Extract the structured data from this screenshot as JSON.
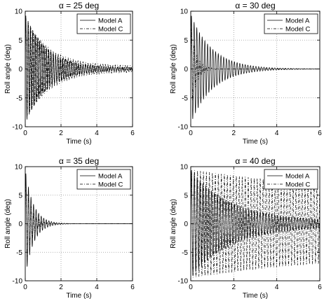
{
  "chart_data": [
    {
      "type": "line",
      "title": "α = 25 deg",
      "xlabel": "Time (s)",
      "ylabel": "Roll angle (deg)",
      "xlim": [
        0,
        6
      ],
      "ylim": [
        -10,
        10
      ],
      "xticks": [
        "0",
        "2",
        "4",
        "6"
      ],
      "yticks": [
        "-10",
        "-5",
        "0",
        "5",
        "10"
      ],
      "grid": true,
      "legend_position": "top-right",
      "series": [
        {
          "name": "Model A",
          "style": "solid",
          "amp0": 9.5,
          "freq": 7.8,
          "decay": 0.85,
          "floor": 0.2
        },
        {
          "name": "Model C",
          "style": "dashdot",
          "amp0": 9.0,
          "freq": 7.2,
          "decay": 0.75,
          "floor": 0.5
        }
      ]
    },
    {
      "type": "line",
      "title": "α = 30 deg",
      "xlabel": "Time (s)",
      "ylabel": "Roll angle (deg)",
      "xlim": [
        0,
        6
      ],
      "ylim": [
        -10,
        10
      ],
      "xticks": [
        "0",
        "2",
        "4",
        "6"
      ],
      "yticks": [
        "-10",
        "-5",
        "0",
        "5",
        "10"
      ],
      "grid": true,
      "legend_position": "top-right",
      "series": [
        {
          "name": "Model A",
          "style": "solid",
          "amp0": 9.5,
          "freq": 8.0,
          "decay": 1.0,
          "floor": 0.0
        },
        {
          "name": "Model C",
          "style": "dashdot",
          "amp0": 8.0,
          "freq": 7.5,
          "decay": 4.0,
          "floor": 0.0
        }
      ]
    },
    {
      "type": "line",
      "title": "α = 35 deg",
      "xlabel": "Time (s)",
      "ylabel": "Roll angle (deg)",
      "xlim": [
        0,
        6
      ],
      "ylim": [
        -10,
        10
      ],
      "xticks": [
        "0",
        "2",
        "4",
        "6"
      ],
      "yticks": [
        "-10",
        "-5",
        "0",
        "5",
        "10"
      ],
      "grid": true,
      "legend_position": "top-right",
      "series": [
        {
          "name": "Model A",
          "style": "solid",
          "amp0": 9.5,
          "freq": 7.0,
          "decay": 2.2,
          "floor": 0.0
        },
        {
          "name": "Model C",
          "style": "dashdot",
          "amp0": 8.0,
          "freq": 6.8,
          "decay": 3.0,
          "floor": 0.0
        }
      ]
    },
    {
      "type": "line",
      "title": "α = 40 deg",
      "xlabel": "Time (s)",
      "ylabel": "Roll angle (deg)",
      "xlim": [
        0,
        6
      ],
      "ylim": [
        -10,
        10
      ],
      "xticks": [
        "0",
        "2",
        "4",
        "6"
      ],
      "yticks": [
        "-10",
        "-5",
        "0",
        "5",
        "10"
      ],
      "grid": true,
      "legend_position": "top-right",
      "series": [
        {
          "name": "Model A",
          "style": "solid",
          "amp0": 9.5,
          "freq": 7.5,
          "decay": 0.55,
          "floor": 0.5
        },
        {
          "name": "Model C",
          "style": "dashdot",
          "amp0": 9.5,
          "freq": 7.2,
          "decay": 0.12,
          "floor": 4.5
        }
      ]
    }
  ]
}
